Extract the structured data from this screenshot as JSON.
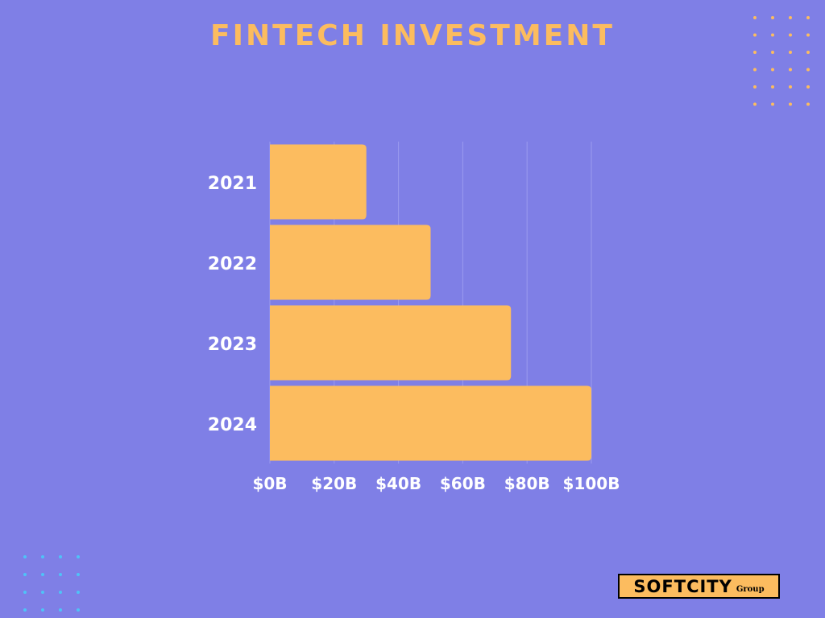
{
  "chart_data": {
    "type": "bar",
    "orientation": "horizontal",
    "title": "FINTECH INVESTMENT",
    "categories": [
      "2021",
      "2022",
      "2023",
      "2024"
    ],
    "values": [
      30,
      50,
      75,
      100
    ],
    "xlim": [
      0,
      100
    ],
    "x_tick_values": [
      0,
      20,
      40,
      60,
      80,
      100
    ],
    "x_tick_labels": [
      "$0B",
      "$20B",
      "$40B",
      "$60B",
      "$80B",
      "$100B"
    ],
    "xlabel": "",
    "ylabel": "",
    "grid": "vertical",
    "legend": "none"
  },
  "logo": {
    "name": "SOFTCITY",
    "suffix": "Group"
  },
  "colors": {
    "background": "#7f7fe6",
    "bar": "#fcbc5f",
    "title": "#fcbc5f",
    "text": "#ffffff",
    "grid": "#9b9bef",
    "dots_top": "#fcbc5f",
    "dots_bottom": "#4fc3f7"
  }
}
